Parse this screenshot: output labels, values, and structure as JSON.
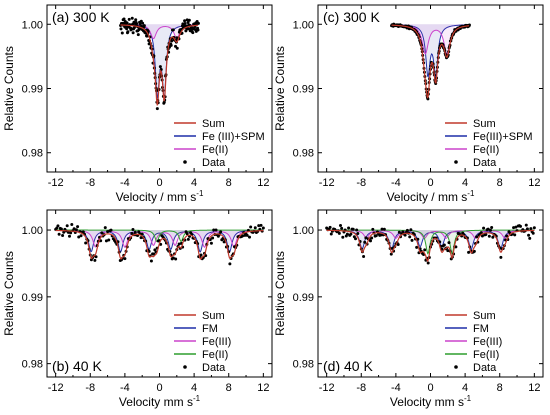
{
  "figure": {
    "colors": {
      "sum": "#c0392b",
      "fe3_spm": "#1f2fa8",
      "fm": "#1f2fa8",
      "fe3": "#cc44cc",
      "fe2_300": "#cc44cc",
      "fe2_40": "#2e9e2e",
      "data": "#000000",
      "axis": "#000000"
    }
  },
  "chart_data": [
    {
      "type": "scatter",
      "panel_label": "(a) 300 K",
      "xlabel": "Velocity / mm s",
      "xlabel_sup": "-1",
      "ylabel": "Relative Counts",
      "xlim": [
        -13,
        13
      ],
      "ylim": [
        0.977,
        1.003
      ],
      "xticks": [
        -12,
        -8,
        -4,
        0,
        4,
        8,
        12
      ],
      "yticks": [
        0.98,
        0.99,
        1.0
      ],
      "ytick_labels": [
        "0.98",
        "0.99",
        "1.00"
      ],
      "legend_position": "bottom-right",
      "data_range": [
        -4.5,
        4.5
      ],
      "noise": 0.0012,
      "series": [
        {
          "name": "Sum",
          "role": "sum",
          "color": "#c0392b"
        },
        {
          "name": "Fe (III)+SPM",
          "role": "component",
          "color": "#1f2fa8",
          "lines": [
            {
              "center": -0.25,
              "depth": 0.0105,
              "width": 0.55
            },
            {
              "center": 0.55,
              "depth": 0.0105,
              "width": 0.55
            }
          ]
        },
        {
          "name": "Fe(II)",
          "role": "component",
          "color": "#cc44cc",
          "lines": [
            {
              "center": -0.7,
              "depth": 0.0022,
              "width": 0.8
            },
            {
              "center": 2.0,
              "depth": 0.0022,
              "width": 0.8
            }
          ]
        },
        {
          "name": "Data",
          "role": "data",
          "color": "#000000"
        }
      ]
    },
    {
      "type": "scatter",
      "panel_label": "(c) 300 K",
      "xlabel": "Velocity / mm s",
      "xlabel_sup": "-1",
      "ylabel": "Relative Counts",
      "xlim": [
        -13,
        13
      ],
      "ylim": [
        0.977,
        1.003
      ],
      "xticks": [
        -12,
        -8,
        -4,
        0,
        4,
        8,
        12
      ],
      "yticks": [
        0.98,
        0.99,
        1.0
      ],
      "ytick_labels": [
        "0.98",
        "0.99",
        "1.00"
      ],
      "legend_position": "bottom-right",
      "data_range": [
        -4.5,
        4.5
      ],
      "noise": 0.0002,
      "series": [
        {
          "name": "Sum",
          "role": "sum",
          "color": "#c0392b"
        },
        {
          "name": "Fe(III)+SPM",
          "role": "component",
          "color": "#1f2fa8",
          "lines": [
            {
              "center": -0.3,
              "depth": 0.0075,
              "width": 0.6
            },
            {
              "center": 0.6,
              "depth": 0.0075,
              "width": 0.6
            }
          ]
        },
        {
          "name": "Fe(II)",
          "role": "component",
          "color": "#cc44cc",
          "lines": [
            {
              "center": -0.6,
              "depth": 0.0045,
              "width": 0.85
            },
            {
              "center": 1.9,
              "depth": 0.0045,
              "width": 0.85
            }
          ]
        },
        {
          "name": "Data",
          "role": "data",
          "color": "#000000"
        }
      ]
    },
    {
      "type": "scatter",
      "panel_label": "(b) 40 K",
      "xlabel": "Velocity mm s",
      "xlabel_sup": "-1",
      "ylabel": "Relative Counts",
      "xlim": [
        -13,
        13
      ],
      "ylim": [
        0.978,
        1.003
      ],
      "xticks": [
        -12,
        -8,
        -4,
        0,
        4,
        8,
        12
      ],
      "yticks": [
        0.98,
        0.99,
        1.0
      ],
      "ytick_labels": [
        "0.98",
        "0.99",
        "1.00"
      ],
      "legend_position": "bottom-right",
      "data_range": [
        -12,
        12
      ],
      "noise": 0.0009,
      "series": [
        {
          "name": "Sum",
          "role": "sum",
          "color": "#c0392b"
        },
        {
          "name": "FM",
          "role": "component",
          "color": "#1f2fa8",
          "lines": [
            {
              "center": -7.9,
              "depth": 0.0032,
              "width": 0.7
            },
            {
              "center": -4.5,
              "depth": 0.0032,
              "width": 0.7
            },
            {
              "center": -1.2,
              "depth": 0.0028,
              "width": 0.7
            },
            {
              "center": 1.3,
              "depth": 0.0028,
              "width": 0.7
            },
            {
              "center": 4.7,
              "depth": 0.0032,
              "width": 0.7
            },
            {
              "center": 8.1,
              "depth": 0.0032,
              "width": 0.7
            }
          ]
        },
        {
          "name": "Fe(III)",
          "role": "component",
          "color": "#cc44cc",
          "lines": [
            {
              "center": -7.4,
              "depth": 0.0025,
              "width": 0.75
            },
            {
              "center": -4.0,
              "depth": 0.0025,
              "width": 0.75
            },
            {
              "center": -0.7,
              "depth": 0.0022,
              "width": 0.75
            },
            {
              "center": 1.8,
              "depth": 0.0022,
              "width": 0.75
            },
            {
              "center": 5.2,
              "depth": 0.0025,
              "width": 0.75
            },
            {
              "center": 8.6,
              "depth": 0.0025,
              "width": 0.75
            }
          ]
        },
        {
          "name": "Fe(II)",
          "role": "component",
          "color": "#2e9e2e",
          "lines": [
            {
              "center": -0.3,
              "depth": 0.0017,
              "width": 0.6
            },
            {
              "center": 2.5,
              "depth": 0.0017,
              "width": 0.6
            }
          ]
        },
        {
          "name": "Data",
          "role": "data",
          "color": "#000000"
        }
      ]
    },
    {
      "type": "scatter",
      "panel_label": "(d) 40 K",
      "xlabel": "Velocity mm s",
      "xlabel_sup": "-1",
      "ylabel": "Relative Counts",
      "xlim": [
        -13,
        13
      ],
      "ylim": [
        0.978,
        1.003
      ],
      "xticks": [
        -12,
        -8,
        -4,
        0,
        4,
        8,
        12
      ],
      "yticks": [
        0.98,
        0.99,
        1.0
      ],
      "ytick_labels": [
        "0.98",
        "0.99",
        "1.00"
      ],
      "legend_position": "bottom-right",
      "data_range": [
        -12,
        12
      ],
      "noise": 0.0009,
      "series": [
        {
          "name": "Sum",
          "role": "sum",
          "color": "#c0392b"
        },
        {
          "name": "FM",
          "role": "component",
          "color": "#1f2fa8",
          "lines": [
            {
              "center": -7.9,
              "depth": 0.0028,
              "width": 0.7
            },
            {
              "center": -4.5,
              "depth": 0.0028,
              "width": 0.7
            },
            {
              "center": -1.2,
              "depth": 0.0024,
              "width": 0.7
            },
            {
              "center": 1.3,
              "depth": 0.0024,
              "width": 0.7
            },
            {
              "center": 4.7,
              "depth": 0.0028,
              "width": 0.7
            },
            {
              "center": 8.1,
              "depth": 0.0028,
              "width": 0.7
            }
          ]
        },
        {
          "name": "Fe(III)",
          "role": "component",
          "color": "#cc44cc",
          "lines": [
            {
              "center": -7.4,
              "depth": 0.0012,
              "width": 0.75
            },
            {
              "center": -4.0,
              "depth": 0.0012,
              "width": 0.75
            },
            {
              "center": -0.7,
              "depth": 0.0012,
              "width": 0.75
            },
            {
              "center": 1.8,
              "depth": 0.0012,
              "width": 0.75
            },
            {
              "center": 5.2,
              "depth": 0.0012,
              "width": 0.75
            },
            {
              "center": 8.6,
              "depth": 0.0012,
              "width": 0.75
            }
          ]
        },
        {
          "name": "Fe(II)",
          "role": "component",
          "color": "#2e9e2e",
          "lines": [
            {
              "center": -0.3,
              "depth": 0.0035,
              "width": 0.6
            },
            {
              "center": 2.5,
              "depth": 0.0035,
              "width": 0.6
            }
          ]
        },
        {
          "name": "Data",
          "role": "data",
          "color": "#000000"
        }
      ]
    }
  ]
}
